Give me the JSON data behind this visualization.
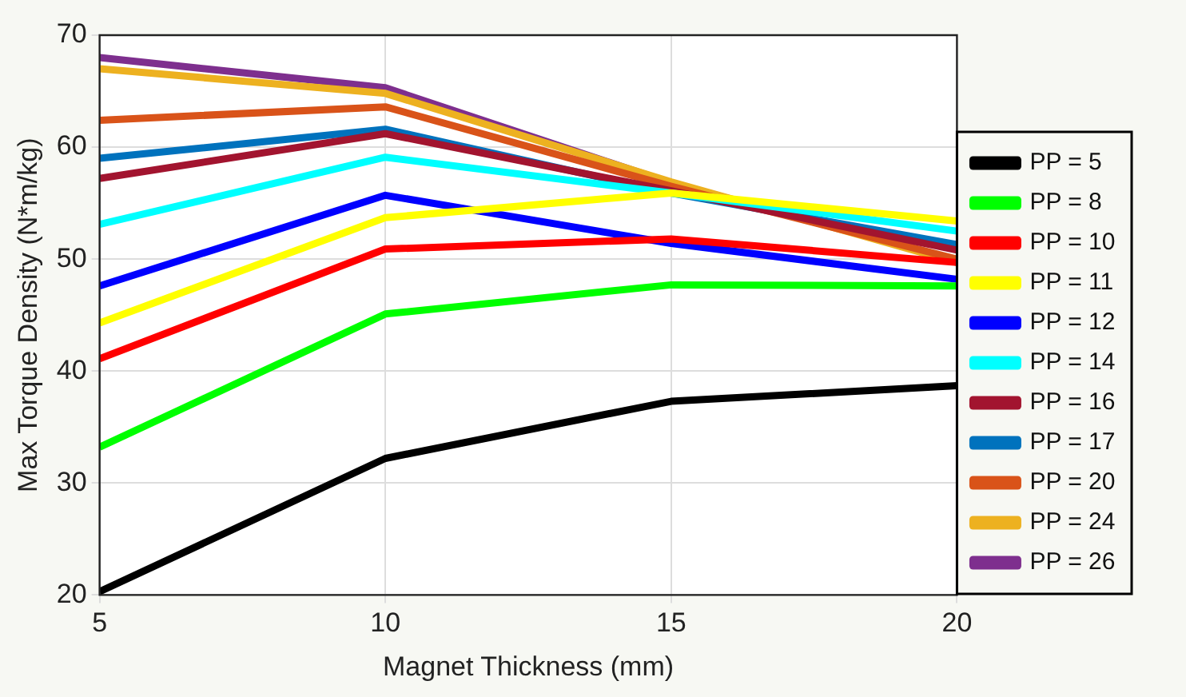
{
  "chart_data": {
    "type": "line",
    "xlabel": "Magnet Thickness (mm)",
    "ylabel": "Max Torque Density (N*m/kg)",
    "x": [
      5,
      10,
      15,
      20
    ],
    "xlim": [
      5,
      20
    ],
    "xticks": [
      5,
      10,
      15,
      20
    ],
    "ylim": [
      20,
      70
    ],
    "yticks": [
      20,
      30,
      40,
      50,
      60,
      70
    ],
    "grid": true,
    "legend": "right",
    "marker": "none",
    "line_style": "solid",
    "series": [
      {
        "name": "PP = 5",
        "color": "#000000",
        "values": [
          20.3,
          32.2,
          37.3,
          38.7
        ]
      },
      {
        "name": "PP = 8",
        "color": "#00ff00",
        "values": [
          33.2,
          45.1,
          47.7,
          47.6
        ]
      },
      {
        "name": "PP = 10",
        "color": "#ff0000",
        "values": [
          41.1,
          50.9,
          51.8,
          49.7
        ]
      },
      {
        "name": "PP = 11",
        "color": "#ffff00",
        "values": [
          44.3,
          53.7,
          55.9,
          53.4
        ]
      },
      {
        "name": "PP = 12",
        "color": "#0000ff",
        "values": [
          47.6,
          55.7,
          51.4,
          48.2
        ]
      },
      {
        "name": "PP = 14",
        "color": "#00ffff",
        "values": [
          53.1,
          59.1,
          55.9,
          52.5
        ]
      },
      {
        "name": "PP = 16",
        "color": "#a2142f",
        "values": [
          57.2,
          61.2,
          56.1,
          50.8
        ]
      },
      {
        "name": "PP = 17",
        "color": "#0072bd",
        "values": [
          59.0,
          61.6,
          55.9,
          51.3
        ]
      },
      {
        "name": "PP = 20",
        "color": "#d95319",
        "values": [
          62.4,
          63.6,
          56.5,
          50.0
        ]
      },
      {
        "name": "PP = 24",
        "color": "#edb120",
        "values": [
          67.0,
          64.8,
          56.9,
          49.7
        ]
      },
      {
        "name": "PP = 26",
        "color": "#7e2f8e",
        "values": [
          68.0,
          65.3,
          56.8,
          49.9
        ]
      }
    ]
  }
}
